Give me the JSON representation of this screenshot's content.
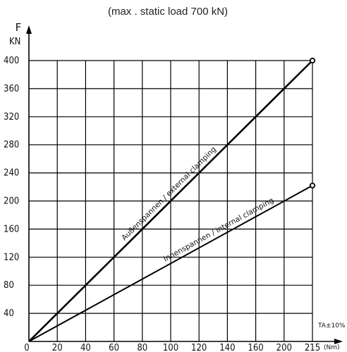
{
  "chart_data": {
    "type": "line",
    "note": "(max . static load 700 kN)",
    "ylabel": "F",
    "yunit": "KN",
    "xlabel": "TA±10%",
    "xunit": "(Nm)",
    "x_ticks": [
      "0",
      "20",
      "40",
      "60",
      "80",
      "100",
      "120",
      "140",
      "160",
      "200",
      "215"
    ],
    "y_ticks": [
      40,
      80,
      120,
      160,
      200,
      240,
      280,
      320,
      360,
      400
    ],
    "xlim": [
      0,
      215
    ],
    "ylim": [
      0,
      400
    ],
    "grid": true,
    "series": [
      {
        "name": "Außenspannen / external clamping",
        "x": [
          0,
          215
        ],
        "y": [
          0,
          400
        ],
        "color": "#000000"
      },
      {
        "name": "Innenspannen / internal clamping",
        "x": [
          0,
          215
        ],
        "y": [
          0,
          222
        ],
        "color": "#000000"
      }
    ]
  }
}
